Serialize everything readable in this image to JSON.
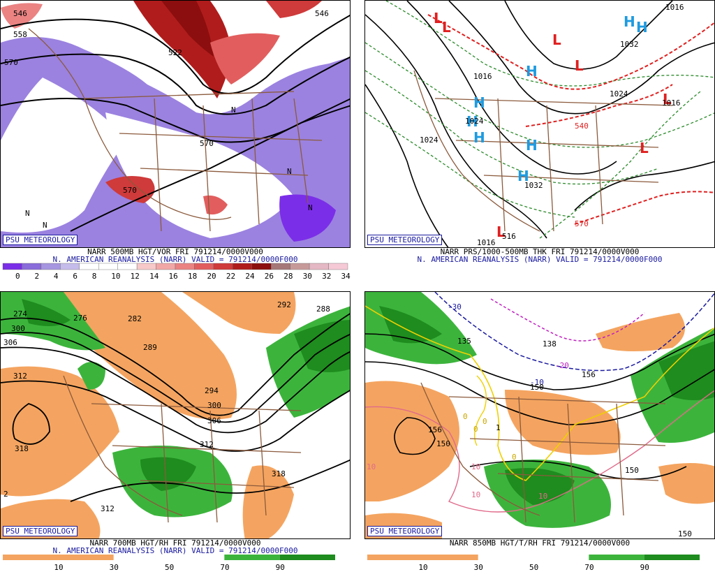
{
  "branding": "PSU METEOROLOGY",
  "reanalysis_line": "N. AMERICAN REANALYSIS (NARR) VALID = 791214/0000F000",
  "panels": {
    "vorticity": {
      "caption": "NARR 500MB HGT/VOR FRI 791214/0000V000",
      "contour_labels": [
        "546",
        "558",
        "570",
        "522",
        "570",
        "546",
        "570",
        "N",
        "N",
        "N",
        "N",
        "N"
      ],
      "legend_ticks": [
        "0",
        "2",
        "4",
        "6",
        "8",
        "10",
        "12",
        "14",
        "16",
        "18",
        "20",
        "22",
        "24",
        "26",
        "28",
        "30",
        "32",
        "34"
      ],
      "legend_colors": [
        "#7b2ee8",
        "#8a6cdb",
        "#a695e0",
        "#c6bceb",
        "#ffffff",
        "#ffffff",
        "#ffffff",
        "#f7c9c9",
        "#f2a7a7",
        "#eb8383",
        "#e25e5e",
        "#cf3a3a",
        "#b01c1c",
        "#8c0e0e",
        "#a67878",
        "#c79a9a",
        "#e4b8c4",
        "#f6c9d6"
      ]
    },
    "thickness": {
      "caption": "NARR PRS/1000-500MB THK FRI 791214/0000V000",
      "contour_labels": [
        "1032",
        "1024",
        "1016",
        "1032",
        "1024",
        "1016",
        "540",
        "570",
        "516",
        "1016",
        "1024",
        "1016"
      ],
      "high_label": "H",
      "low_label": "L"
    },
    "humidity700": {
      "caption": "NARR 700MB HGT/RH FRI 791214/0000V000",
      "contour_labels": [
        "274",
        "276",
        "282",
        "292",
        "288",
        "300",
        "306",
        "312",
        "289",
        "294",
        "300",
        "306",
        "312",
        "318",
        "318",
        "312",
        "2"
      ],
      "legend_ticks": [
        "10",
        "30",
        "50",
        "70",
        "90"
      ]
    },
    "temp850": {
      "caption": "NARR 850MB HGT/T/RH FRI 791214/0000V000",
      "contour_labels": [
        "-30",
        "-20",
        "-10",
        "0",
        "0",
        "0",
        "0",
        "1",
        "10",
        "10",
        "10",
        "10",
        "138",
        "135",
        "150",
        "156",
        "150",
        "150",
        "150",
        "156"
      ],
      "legend_ticks": [
        "10",
        "30",
        "50",
        "70",
        "90"
      ]
    }
  },
  "colors": {
    "rh_dry": "#f4a460",
    "rh_moist_light": "#3cb43c",
    "rh_moist_dark": "#1e8c1e",
    "border": "#8b5a3c",
    "contour": "#000000",
    "thk_warm": "#e02020",
    "thk_cold": "#2a8a2a",
    "high_symbol": "#1e9be0",
    "low_symbol": "#e02020",
    "freezing_line": "#f0d000",
    "isotherm_neg": "#1a1aa0",
    "isotherm_mag": "#c020c0",
    "isotherm_pos": "#e06a8a"
  }
}
